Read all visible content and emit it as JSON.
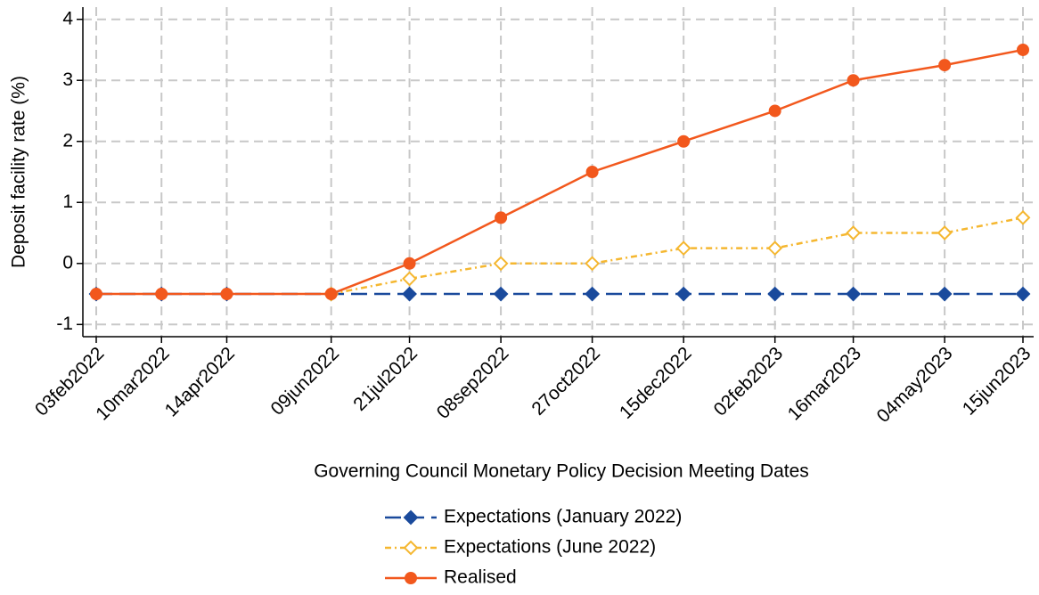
{
  "chart_data": {
    "type": "line",
    "y_label": "Deposit facility rate (%)",
    "x_label": "Governing Council Monetary Policy Decision Meeting Dates",
    "x": [
      "03feb2022",
      "10mar2022",
      "14apr2022",
      "09jun2022",
      "21jul2022",
      "08sep2022",
      "27oct2022",
      "15dec2022",
      "02feb2023",
      "16mar2023",
      "04may2023",
      "15jun2023"
    ],
    "series": [
      {
        "name": "Expectations (January 2022)",
        "color": "#1a4a9c",
        "marker": "diamond",
        "fill": "solid",
        "line_style": "longdash",
        "values": [
          -0.5,
          -0.5,
          -0.5,
          -0.5,
          -0.5,
          -0.5,
          -0.5,
          -0.5,
          -0.5,
          -0.5,
          -0.5,
          -0.5
        ]
      },
      {
        "name": "Expectations (June 2022)",
        "color": "#f5b730",
        "marker": "diamond",
        "fill": "hollow",
        "line_style": "dashdot",
        "values": [
          null,
          null,
          null,
          -0.5,
          -0.25,
          0,
          0,
          0.25,
          0.25,
          0.5,
          0.5,
          0.75
        ]
      },
      {
        "name": "Realised",
        "color": "#f2581d",
        "marker": "circle",
        "fill": "solid",
        "line_style": "solid",
        "values": [
          -0.5,
          -0.5,
          -0.5,
          -0.5,
          0,
          0.75,
          1.5,
          2,
          2.5,
          3,
          3.25,
          3.5
        ]
      }
    ],
    "ylim": [
      -1.2,
      4.2
    ],
    "yticks": [
      -1,
      0,
      1,
      2,
      3,
      4
    ],
    "grid": true,
    "legend": "bottom"
  }
}
